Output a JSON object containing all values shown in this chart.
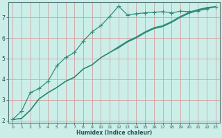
{
  "xlabel": "Humidex (Indice chaleur)",
  "bg_color": "#cceee8",
  "grid_color": "#d4a0a0",
  "line_color": "#2e8b7a",
  "xlim": [
    -0.5,
    23.5
  ],
  "ylim": [
    1.9,
    7.75
  ],
  "xticks": [
    0,
    1,
    2,
    3,
    4,
    5,
    6,
    7,
    8,
    9,
    10,
    11,
    12,
    13,
    14,
    15,
    16,
    17,
    18,
    19,
    20,
    21,
    22,
    23
  ],
  "yticks": [
    2,
    3,
    4,
    5,
    6,
    7
  ],
  "series_marked": [
    2.05,
    2.45,
    3.35,
    3.55,
    3.9,
    4.65,
    5.05,
    5.3,
    5.85,
    6.3,
    6.6,
    7.05,
    7.55,
    7.12,
    7.18,
    7.22,
    7.25,
    7.28,
    7.22,
    7.3,
    7.28,
    7.32,
    7.42,
    7.52
  ],
  "series_smooth": [
    [
      2.05,
      2.1,
      2.5,
      3.05,
      3.35,
      3.6,
      3.9,
      4.1,
      4.5,
      4.7,
      5.05,
      5.3,
      5.58,
      5.85,
      6.05,
      6.3,
      6.5,
      6.6,
      6.8,
      7.05,
      7.25,
      7.38,
      7.48,
      7.52
    ],
    [
      2.05,
      2.1,
      2.5,
      3.05,
      3.35,
      3.6,
      3.9,
      4.1,
      4.5,
      4.7,
      5.05,
      5.3,
      5.55,
      5.82,
      6.02,
      6.28,
      6.48,
      6.58,
      6.78,
      7.02,
      7.22,
      7.35,
      7.45,
      7.52
    ],
    [
      2.05,
      2.1,
      2.5,
      3.05,
      3.35,
      3.6,
      3.9,
      4.1,
      4.5,
      4.7,
      5.05,
      5.3,
      5.52,
      5.8,
      6.0,
      6.25,
      6.45,
      6.55,
      6.75,
      7.0,
      7.2,
      7.33,
      7.43,
      7.52
    ]
  ],
  "marker": "+",
  "markersize": 4,
  "linewidth": 0.9
}
